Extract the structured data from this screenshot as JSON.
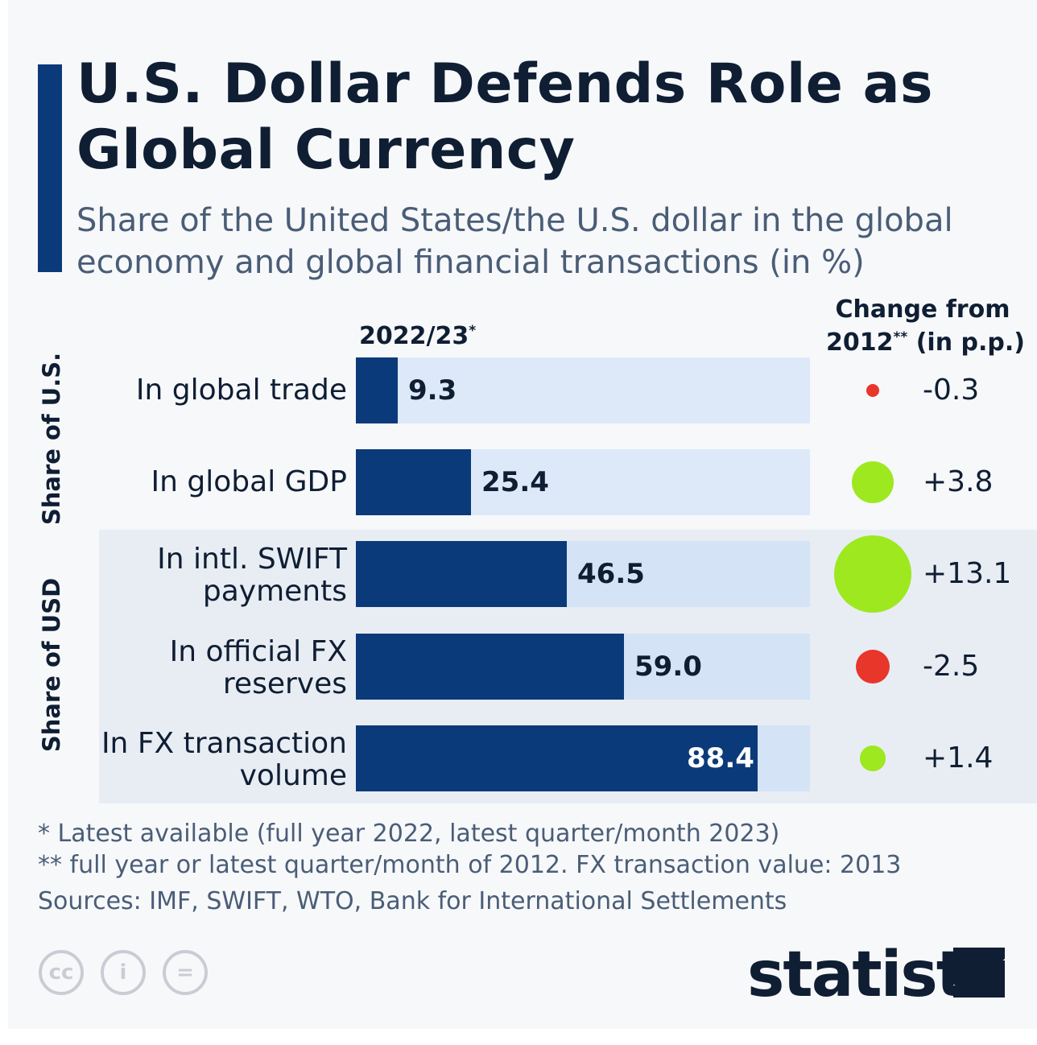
{
  "title": "U.S. Dollar Defends Role as Global Currency",
  "subtitle": "Share of the United States/the U.S. dollar in the global economy and global financial transactions (in %)",
  "groups": {
    "us_share": "Share of U.S.",
    "usd_share": "Share of USD"
  },
  "columns": {
    "current": "2022/23",
    "current_mark": "*",
    "change_line1": "Change from",
    "change_line2": "2012",
    "change_mark": "**",
    "change_line2_rest": " (in p.p.)"
  },
  "colors": {
    "bar": "#0b3a7a",
    "track_us": "#dde9f9",
    "track_usd": "#d4e3f5",
    "positive": "#9ee81f",
    "negative": "#e8362a"
  },
  "chart_data": {
    "type": "bar",
    "orientation": "horizontal",
    "title": "U.S. Dollar Defends Role as Global Currency",
    "subtitle": "Share of the United States/the U.S. dollar in the global economy and global financial transactions (in %)",
    "xlim": [
      0,
      100
    ],
    "categories": [
      "In global trade",
      "In global GDP",
      "In intl. SWIFT payments",
      "In official FX reserves",
      "In FX transaction volume"
    ],
    "series": [
      {
        "name": "2022/23",
        "values": [
          9.3,
          25.4,
          46.5,
          59.0,
          88.4
        ]
      },
      {
        "name": "Change from 2012 (in p.p.)",
        "values": [
          -0.3,
          3.8,
          13.1,
          -2.5,
          1.4
        ]
      }
    ],
    "rows": [
      {
        "group": "Share of U.S.",
        "label_lines": [
          "In global trade"
        ],
        "value": 9.3,
        "value_text": "9.3",
        "change": -0.3,
        "change_text": "-0.3"
      },
      {
        "group": "Share of U.S.",
        "label_lines": [
          "In global GDP"
        ],
        "value": 25.4,
        "value_text": "25.4",
        "change": 3.8,
        "change_text": "+3.8"
      },
      {
        "group": "Share of USD",
        "label_lines": [
          "In intl. SWIFT",
          "payments"
        ],
        "value": 46.5,
        "value_text": "46.5",
        "change": 13.1,
        "change_text": "+13.1"
      },
      {
        "group": "Share of USD",
        "label_lines": [
          "In official FX",
          "reserves"
        ],
        "value": 59.0,
        "value_text": "59.0",
        "change": -2.5,
        "change_text": "-2.5"
      },
      {
        "group": "Share of USD",
        "label_lines": [
          "In FX transaction",
          "volume"
        ],
        "value": 88.4,
        "value_text": "88.4",
        "change": 1.4,
        "change_text": "+1.4"
      }
    ],
    "grid": false,
    "legend": "none"
  },
  "footnotes": {
    "note1": "*   Latest available (full year 2022, latest quarter/month 2023)",
    "note2": "** full year or latest quarter/month of 2012. FX transaction value: 2013",
    "sources": "Sources: IMF, SWIFT, WTO, Bank for International Settlements"
  },
  "license_icons": [
    {
      "icon": "creative-commons-icon",
      "glyph": "cc"
    },
    {
      "icon": "attribution-icon",
      "glyph": "i"
    },
    {
      "icon": "no-derivatives-icon",
      "glyph": "="
    }
  ],
  "brand": {
    "name": "statista",
    "icon": "statista-logo-icon"
  }
}
